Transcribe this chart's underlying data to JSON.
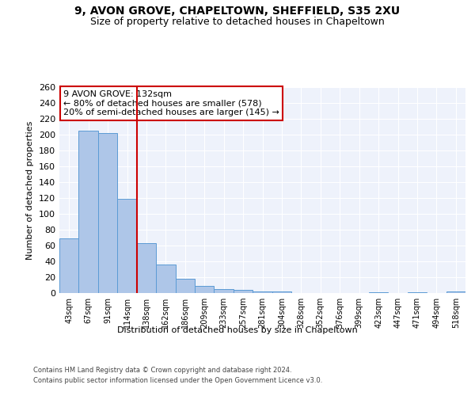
{
  "title1": "9, AVON GROVE, CHAPELTOWN, SHEFFIELD, S35 2XU",
  "title2": "Size of property relative to detached houses in Chapeltown",
  "xlabel": "Distribution of detached houses by size in Chapeltown",
  "ylabel": "Number of detached properties",
  "categories": [
    "43sqm",
    "67sqm",
    "91sqm",
    "114sqm",
    "138sqm",
    "162sqm",
    "186sqm",
    "209sqm",
    "233sqm",
    "257sqm",
    "281sqm",
    "304sqm",
    "328sqm",
    "352sqm",
    "376sqm",
    "399sqm",
    "423sqm",
    "447sqm",
    "471sqm",
    "494sqm",
    "518sqm"
  ],
  "values": [
    69,
    205,
    202,
    119,
    63,
    36,
    18,
    9,
    5,
    4,
    2,
    2,
    0,
    0,
    0,
    0,
    1,
    0,
    1,
    0,
    2
  ],
  "bar_color": "#aec6e8",
  "bar_edgecolor": "#5b9bd5",
  "annotation_line1": "9 AVON GROVE: 132sqm",
  "annotation_line2": "← 80% of detached houses are smaller (578)",
  "annotation_line3": "20% of semi-detached houses are larger (145) →",
  "vline_color": "#cc0000",
  "box_edgecolor": "#cc0000",
  "footer1": "Contains HM Land Registry data © Crown copyright and database right 2024.",
  "footer2": "Contains public sector information licensed under the Open Government Licence v3.0.",
  "ylim": [
    0,
    260
  ],
  "yticks": [
    0,
    20,
    40,
    60,
    80,
    100,
    120,
    140,
    160,
    180,
    200,
    220,
    240,
    260
  ],
  "background_color": "#eef2fb",
  "fig_background": "#ffffff",
  "title1_fontsize": 10,
  "title2_fontsize": 9,
  "ylabel_fontsize": 8,
  "xlabel_fontsize": 8,
  "tick_fontsize": 7,
  "footer_fontsize": 6,
  "annotation_fontsize": 8
}
